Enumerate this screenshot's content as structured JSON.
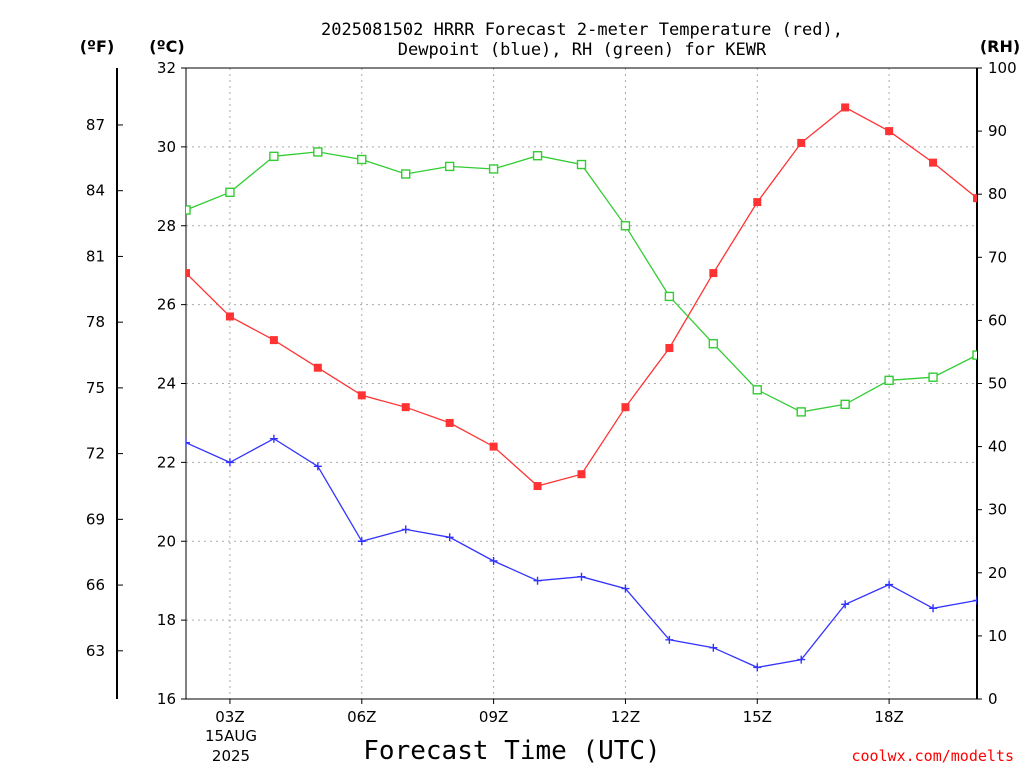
{
  "chart_data": {
    "type": "line",
    "title_line1": "2025081502 HRRR Forecast 2-meter Temperature (red),",
    "title_line2": "Dewpoint (blue), RH (green) for KEWR",
    "xlabel": "Forecast Time (UTC)",
    "credit": "coolwx.com/modelts",
    "unit_f": "(ºF)",
    "unit_c": "(ºC)",
    "unit_rh": "(RH)",
    "date_labels": [
      "15AUG",
      "2025"
    ],
    "x_hours": [
      2,
      3,
      4,
      5,
      6,
      7,
      8,
      9,
      10,
      11,
      12,
      13,
      14,
      15,
      16,
      17,
      18,
      19,
      20
    ],
    "x_ticks": [
      {
        "h": 3,
        "label": "03Z"
      },
      {
        "h": 6,
        "label": "06Z"
      },
      {
        "h": 9,
        "label": "09Z"
      },
      {
        "h": 12,
        "label": "12Z"
      },
      {
        "h": 15,
        "label": "15Z"
      },
      {
        "h": 18,
        "label": "18Z"
      }
    ],
    "xlim": [
      2,
      20
    ],
    "ylim_c": [
      16,
      32
    ],
    "ylim_rh": [
      0,
      100
    ],
    "c_ticks": [
      16,
      18,
      20,
      22,
      24,
      26,
      28,
      30,
      32
    ],
    "f_ticks": [
      63,
      66,
      69,
      72,
      75,
      78,
      81,
      84,
      87
    ],
    "rh_ticks": [
      0,
      10,
      20,
      30,
      40,
      50,
      60,
      70,
      80,
      90,
      100
    ],
    "grid": true,
    "series": [
      {
        "name": "2-meter Temperature",
        "axis": "c",
        "color": "#ff3333",
        "marker": "filled-square",
        "values": [
          26.8,
          25.7,
          25.1,
          24.4,
          23.7,
          23.4,
          23.0,
          22.4,
          21.4,
          21.7,
          23.4,
          24.9,
          26.8,
          28.6,
          30.1,
          31.0,
          30.4,
          29.6,
          28.7
        ]
      },
      {
        "name": "Dewpoint",
        "axis": "c",
        "color": "#3333ff",
        "marker": "plus",
        "values": [
          22.5,
          22.0,
          22.6,
          21.9,
          20.0,
          20.3,
          20.1,
          19.5,
          19.0,
          19.1,
          18.8,
          17.5,
          17.3,
          16.8,
          17.0,
          18.4,
          18.9,
          18.3,
          18.5
        ]
      },
      {
        "name": "RH",
        "axis": "rh",
        "color": "#33cc33",
        "marker": "open-square",
        "values": [
          77.5,
          80.3,
          86.0,
          86.7,
          85.5,
          83.2,
          84.4,
          84.0,
          86.1,
          84.7,
          75.0,
          63.8,
          56.3,
          49.0,
          45.5,
          46.7,
          50.5,
          51.0,
          54.5
        ]
      }
    ]
  }
}
